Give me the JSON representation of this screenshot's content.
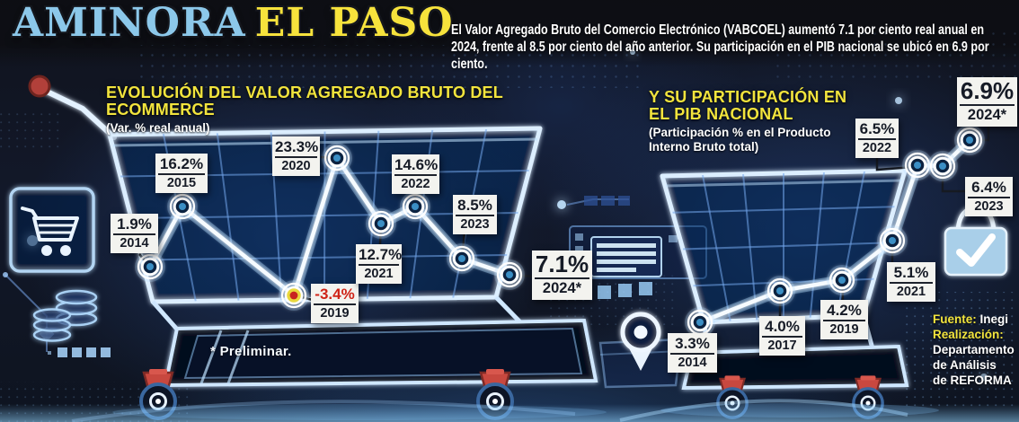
{
  "header": {
    "title_part1": "AMINORA",
    "title_part2": "EL PASO",
    "intro": "El Valor Agregado Bruto del Comercio Electrónico (VABCOEL) aumentó 7.1 por ciento real anual en 2024, frente al 8.5 por ciento del año anterior. Su participación en el PIB nacional se ubicó en 6.9 por ciento."
  },
  "chart_data": [
    {
      "type": "line",
      "title": "EVOLUCIÓN DEL VALOR AGREGADO BRUTO DEL ECOMMERCE",
      "subtitle": "(Var. % real anual)",
      "unit": "%",
      "points": [
        {
          "year": "2014",
          "label": "1.9%",
          "value": 1.9
        },
        {
          "year": "2015",
          "label": "16.2%",
          "value": 16.2
        },
        {
          "year": "2019",
          "label": "-3.4%",
          "value": -3.4,
          "negative": true
        },
        {
          "year": "2020",
          "label": "23.3%",
          "value": 23.3
        },
        {
          "year": "2021",
          "label": "12.7%",
          "value": 12.7
        },
        {
          "year": "2022",
          "label": "14.6%",
          "value": 14.6
        },
        {
          "year": "2023",
          "label": "8.5%",
          "value": 8.5
        },
        {
          "year": "2024*",
          "label": "7.1%",
          "value": 7.1,
          "highlight": true
        }
      ],
      "reference_line": {
        "style": "dashed",
        "at_value": 7.1
      },
      "grid": true,
      "legend": "none"
    },
    {
      "type": "line",
      "title": "Y SU PARTICIPACIÓN EN EL PIB NACIONAL",
      "subtitle": "(Participación % en el Producto Interno Bruto total)",
      "unit": "%",
      "points": [
        {
          "year": "2014",
          "label": "3.3%",
          "value": 3.3
        },
        {
          "year": "2017",
          "label": "4.0%",
          "value": 4.0
        },
        {
          "year": "2019",
          "label": "4.2%",
          "value": 4.2
        },
        {
          "year": "2021",
          "label": "5.1%",
          "value": 5.1
        },
        {
          "year": "2022",
          "label": "6.5%",
          "value": 6.5
        },
        {
          "year": "2023",
          "label": "6.4%",
          "value": 6.4
        },
        {
          "year": "2024*",
          "label": "6.9%",
          "value": 6.9,
          "highlight": true
        }
      ],
      "grid": true,
      "legend": "none"
    }
  ],
  "footnote": "* Preliminar.",
  "credits": {
    "source_label": "Fuente:",
    "source": "Inegi",
    "realization_label": "Realización:",
    "realization_lines": [
      "Departamento",
      "de Análisis",
      "de REFORMA"
    ]
  },
  "icons": [
    "cart-icon",
    "coins-icon",
    "location-pin-icon",
    "shopping-bag-check-icon"
  ],
  "colors": {
    "title_blue": "#8cc8ea",
    "accent_yellow": "#f2e43d",
    "negative_red": "#cf2317",
    "neon_blue": "#dceeff",
    "label_bg": "#f3f3ef",
    "background": "#10131d"
  }
}
